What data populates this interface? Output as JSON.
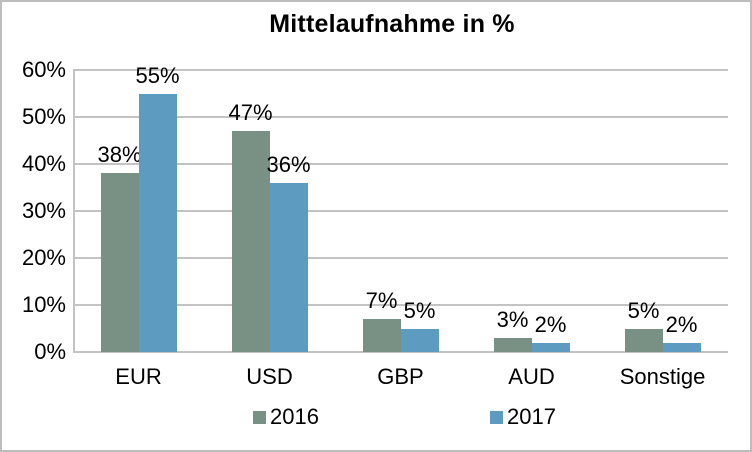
{
  "frame": {
    "background": "#ffffff",
    "border_color": "#bdbdbd"
  },
  "chart_data": {
    "type": "bar",
    "title": "Mittelaufnahme in %",
    "categories": [
      "EUR",
      "USD",
      "GBP",
      "AUD",
      "Sonstige"
    ],
    "series": [
      {
        "name": "2016",
        "color": "#789184",
        "values": [
          38,
          47,
          7,
          3,
          5
        ],
        "labels": [
          "38%",
          "47%",
          "7%",
          "3%",
          "5%"
        ]
      },
      {
        "name": "2017",
        "color": "#5d9cc0",
        "values": [
          55,
          36,
          5,
          2,
          2
        ],
        "labels": [
          "55%",
          "36%",
          "5%",
          "2%",
          "2%"
        ]
      }
    ],
    "value_suffix": "%",
    "ylim": [
      0,
      60
    ],
    "ytick_step": 10,
    "yticks": [
      "0%",
      "10%",
      "20%",
      "30%",
      "40%",
      "50%",
      "60%"
    ],
    "grid": true,
    "gridline_color": "#c3c3c3",
    "axis_color": "#c3c3c3",
    "legend_position": "bottom",
    "data_labels_shown": true
  }
}
